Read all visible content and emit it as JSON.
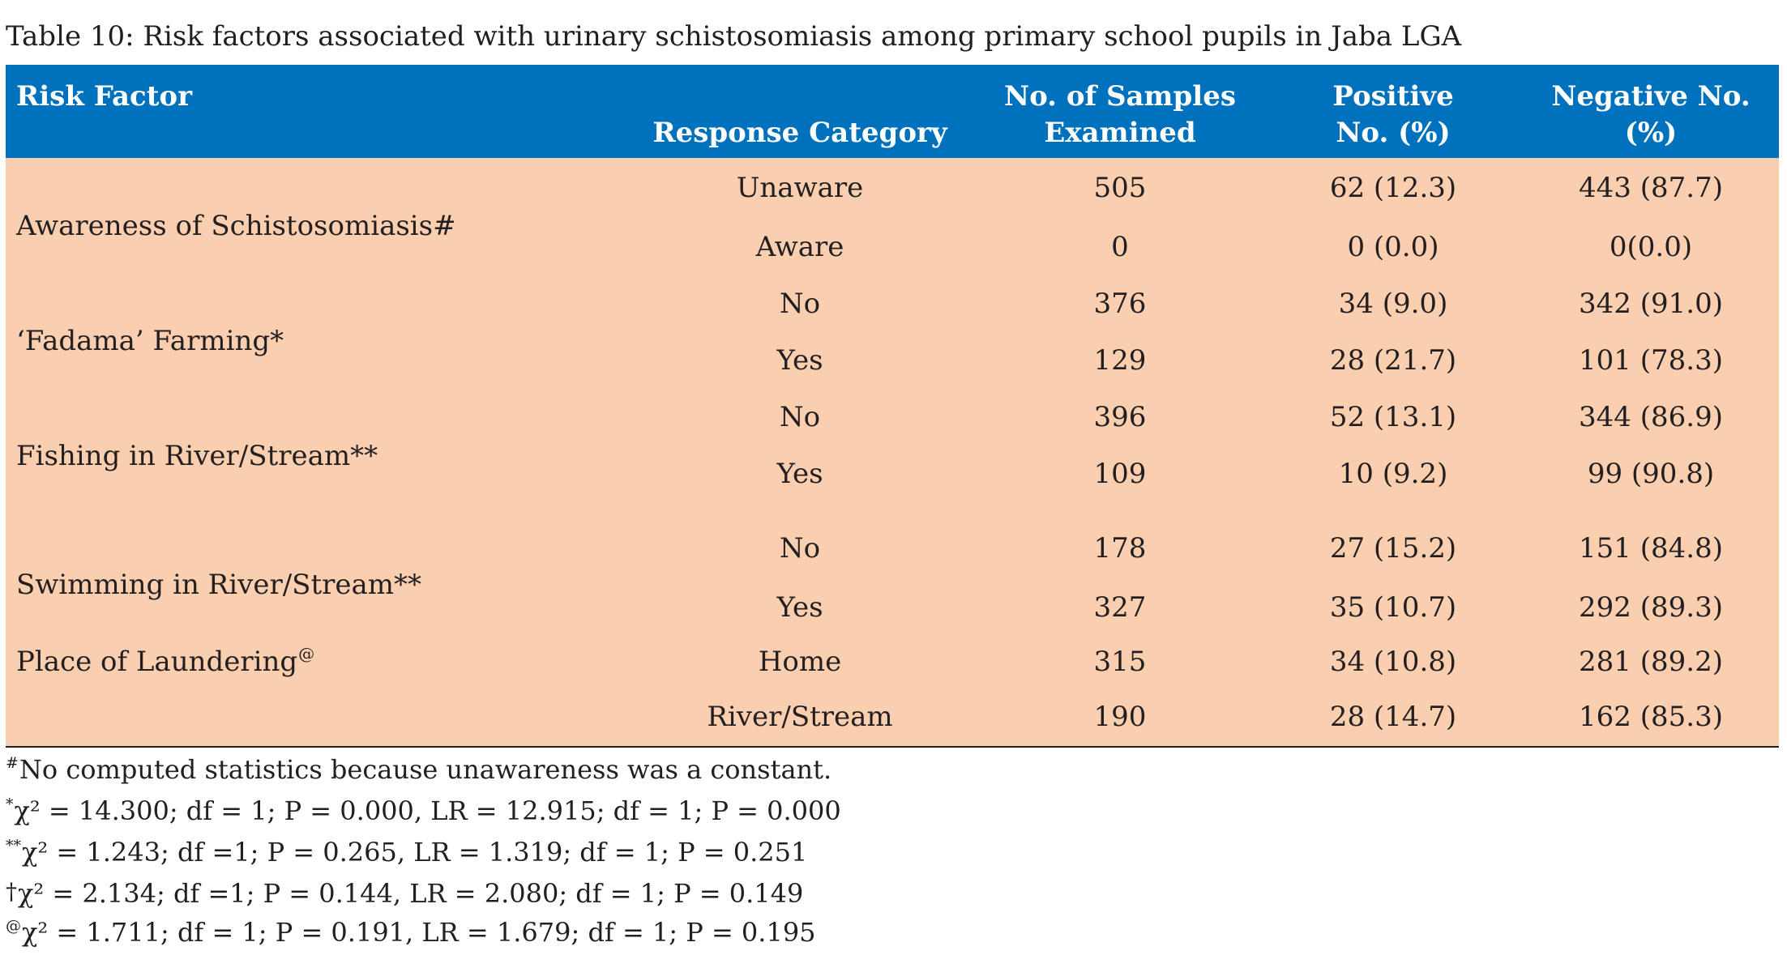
{
  "title": "Table 10: Risk factors associated with urinary schistosomiasis among primary school pupils in Jaba LGA",
  "colors": {
    "header_bg": "#0071BC",
    "header_text": "#FFFFFF",
    "body_bg": "#F9CFB0",
    "text": "#231F20"
  },
  "table": {
    "headers": {
      "risk_factor": "Risk Factor",
      "response_category": "Response Category",
      "samples_line1": "No. of Samples",
      "samples_line2": "Examined",
      "positive_line1": "Positive",
      "positive_line2": "No. (%)",
      "negative_line1": "Negative No.",
      "negative_line2": "(%)"
    },
    "groups": [
      {
        "risk_factor": "Awareness of Schistosomiasis#",
        "rows": [
          {
            "response": "Unaware",
            "examined": "505",
            "positive": "62 (12.3)",
            "negative": "443 (87.7)"
          },
          {
            "response": "Aware",
            "examined": "0",
            "positive": "0 (0.0)",
            "negative": "0(0.0)"
          }
        ]
      },
      {
        "risk_factor": "‘Fadama’ Farming*",
        "rows": [
          {
            "response": "No",
            "examined": "376",
            "positive": "34 (9.0)",
            "negative": "342 (91.0)"
          },
          {
            "response": "Yes",
            "examined": "129",
            "positive": "28 (21.7)",
            "negative": "101 (78.3)"
          }
        ]
      },
      {
        "risk_factor": "Fishing in River/Stream**",
        "rows": [
          {
            "response": "No",
            "examined": "396",
            "positive": "52 (13.1)",
            "negative": "344 (86.9)"
          },
          {
            "response": "Yes",
            "examined": "109",
            "positive": "10 (9.2)",
            "negative": "99 (90.8)"
          }
        ]
      },
      {
        "risk_factor": "Swimming in River/Stream**",
        "rows": [
          {
            "response": "No",
            "examined": "178",
            "positive": "27 (15.2)",
            "negative": "151 (84.8)"
          },
          {
            "response": "Yes",
            "examined": "327",
            "positive": "35 (10.7)",
            "negative": "292 (89.3)"
          }
        ]
      },
      {
        "risk_factor": "Place of Laundering",
        "risk_factor_marker": "@",
        "rows": [
          {
            "response": "Home",
            "examined": "315",
            "positive": "34 (10.8)",
            "negative": "281 (89.2)"
          },
          {
            "response": "River/Stream",
            "examined": "190",
            "positive": "28 (14.7)",
            "negative": "162 (85.3)"
          }
        ]
      }
    ]
  },
  "footnotes": [
    {
      "marker": "#",
      "text": "No computed statistics because unawareness was a constant."
    },
    {
      "marker": "*",
      "text": "χ² = 14.300; df = 1; P = 0.000, LR = 12.915; df = 1; P = 0.000"
    },
    {
      "marker": "**",
      "text": "χ² = 1.243; df =1; P = 0.265, LR = 1.319; df = 1; P = 0.251"
    },
    {
      "marker": "†",
      "text": "χ² = 2.134; df =1; P = 0.144, LR = 2.080; df = 1; P = 0.149"
    },
    {
      "marker": "@",
      "text": "χ² = 1.711; df = 1; P = 0.191, LR = 1.679; df = 1; P = 0.195"
    }
  ]
}
